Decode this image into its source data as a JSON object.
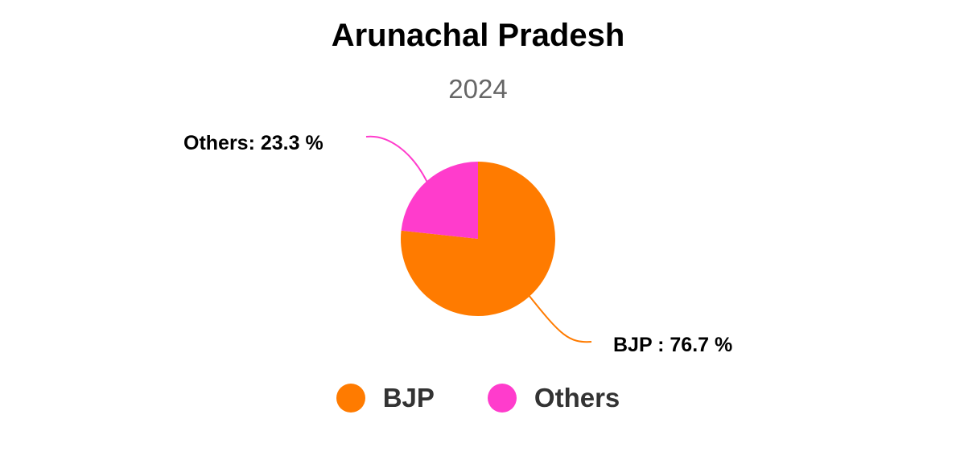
{
  "chart_data": {
    "type": "pie",
    "title": "Arunachal Pradesh",
    "subtitle": "2024",
    "slices": [
      {
        "name": "BJP",
        "value": 76.7,
        "color": "#ff7b00",
        "label": "BJP : 76.7 %"
      },
      {
        "name": "Others",
        "value": 23.3,
        "color": "#ff3ccc",
        "label": "Others: 23.3 %"
      }
    ],
    "legend": {
      "position": "bottom",
      "items": [
        {
          "label": "BJP",
          "color": "#ff7b00"
        },
        {
          "label": "Others",
          "color": "#ff3ccc"
        }
      ]
    }
  }
}
